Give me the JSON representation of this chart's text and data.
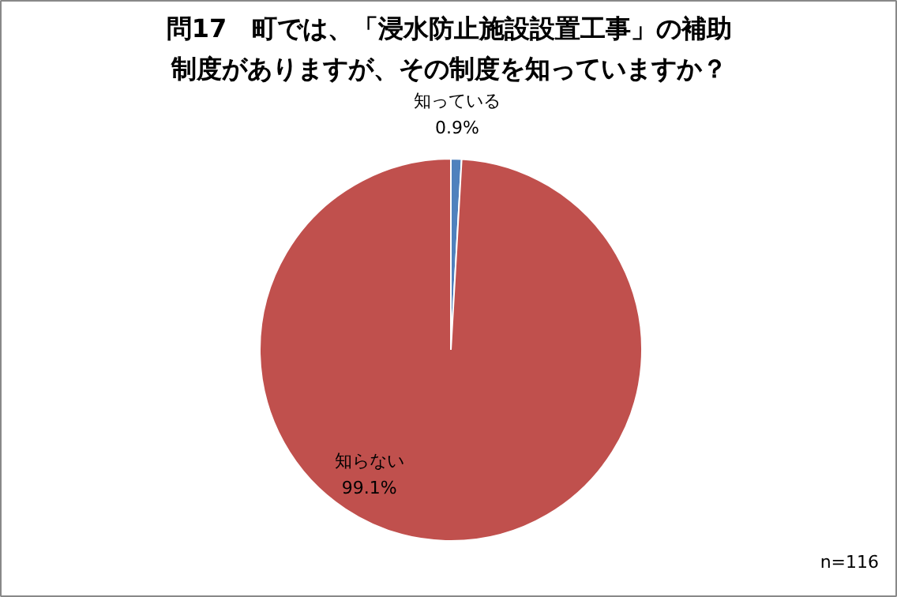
{
  "chart_data": {
    "type": "pie",
    "title": "問17　町では、「浸水防止施設設置工事」の補助制度がありますが、その制度を知っていますか？",
    "categories": [
      "知っている",
      "知らない"
    ],
    "values": [
      0.9,
      99.1
    ],
    "colors": [
      "#4f81bd",
      "#c0504d"
    ],
    "value_labels": [
      "0.9%",
      "99.1%"
    ],
    "annotations": [
      "n=116"
    ]
  }
}
